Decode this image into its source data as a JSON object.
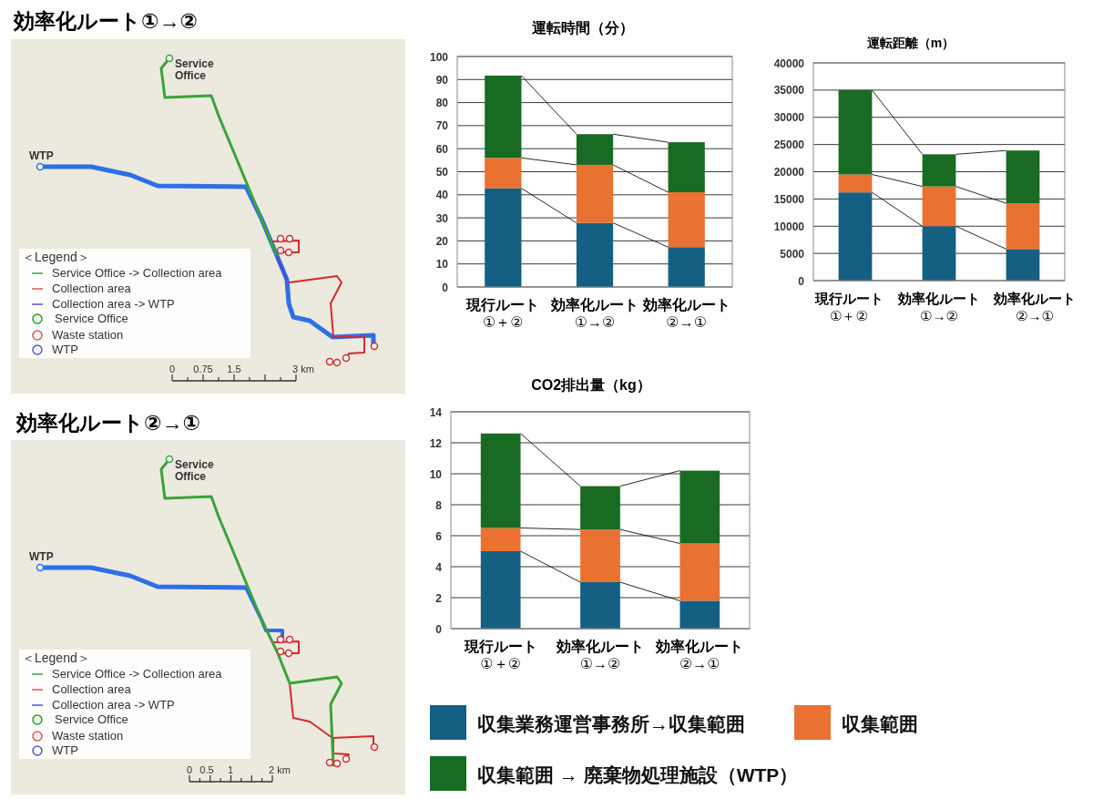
{
  "chart_data": [
    {
      "type": "other",
      "title": "効率化ルート①→②",
      "annotations": [
        "Service\nOffice",
        "WTP",
        "＜Legend＞",
        "Service Office -> Collection area",
        "Collection area",
        "Collection area -> WTP",
        "Service Office",
        "Waste station",
        "WTP",
        "0",
        "0.75",
        "1.5",
        "3 km"
      ]
    },
    {
      "type": "bar",
      "title": "運転時間（分）",
      "categories": [
        "現行ルート\n①＋②",
        "効率化ルート\n①→②",
        "効率化ルート\n②→①"
      ],
      "stacked": true,
      "series": [
        {
          "color": "#156082",
          "values": [
            42.8,
            27.8,
            17.3
          ]
        },
        {
          "color": "#e97132",
          "values": [
            13.2,
            25.2,
            23.8
          ]
        },
        {
          "color": "#196b24",
          "values": [
            35.7,
            13.3,
            21.7
          ]
        }
      ],
      "ylim": [
        0,
        100
      ],
      "yticks": [
        0,
        10,
        20,
        30,
        40,
        50,
        60,
        70,
        80,
        90,
        100
      ],
      "grid": "y"
    },
    {
      "type": "bar",
      "title": "運転距離（m）",
      "categories": [
        "現行ルート\n①＋②",
        "効率化ルート\n①→②",
        "効率化ルート\n②→①"
      ],
      "stacked": true,
      "series": [
        {
          "color": "#156082",
          "values": [
            16200,
            10000,
            5800
          ]
        },
        {
          "color": "#e97132",
          "values": [
            3300,
            7300,
            8400
          ]
        },
        {
          "color": "#196b24",
          "values": [
            15500,
            5900,
            9700
          ]
        }
      ],
      "ylim": [
        0,
        40000
      ],
      "yticks": [
        0,
        5000,
        10000,
        15000,
        20000,
        25000,
        30000,
        35000,
        40000
      ],
      "grid": "y"
    },
    {
      "type": "other",
      "title": "効率化ルート②→①",
      "annotations": [
        "Service\nOffice",
        "WTP",
        "＜Legend＞",
        "Service Office -> Collection area",
        "Collection area",
        "Collection area -> WTP",
        "Service Office",
        "Waste station",
        "WTP",
        "0",
        "0.5",
        "1",
        "2 km"
      ]
    },
    {
      "type": "bar",
      "title": "CO2排出量（kg）",
      "categories": [
        "現行ルート\n①＋②",
        "効率化ルート\n①→②",
        "効率化ルート\n②→①"
      ],
      "stacked": true,
      "series": [
        {
          "name": "収集業務運営事務所→収集範囲",
          "color": "#156082",
          "values": [
            5,
            3,
            1.8
          ]
        },
        {
          "name": "収集範囲",
          "color": "#e97132",
          "values": [
            1.5,
            3.4,
            3.7
          ]
        },
        {
          "name": "収集範囲 → 廃棄物処理施設（WTP）",
          "color": "#196b24",
          "values": [
            6.1,
            2.8,
            4.7
          ]
        }
      ],
      "ylim": [
        0,
        14
      ],
      "yticks": [
        0,
        2,
        4,
        6,
        8,
        10,
        12,
        14
      ],
      "grid": "y",
      "legend": "bottom"
    }
  ]
}
